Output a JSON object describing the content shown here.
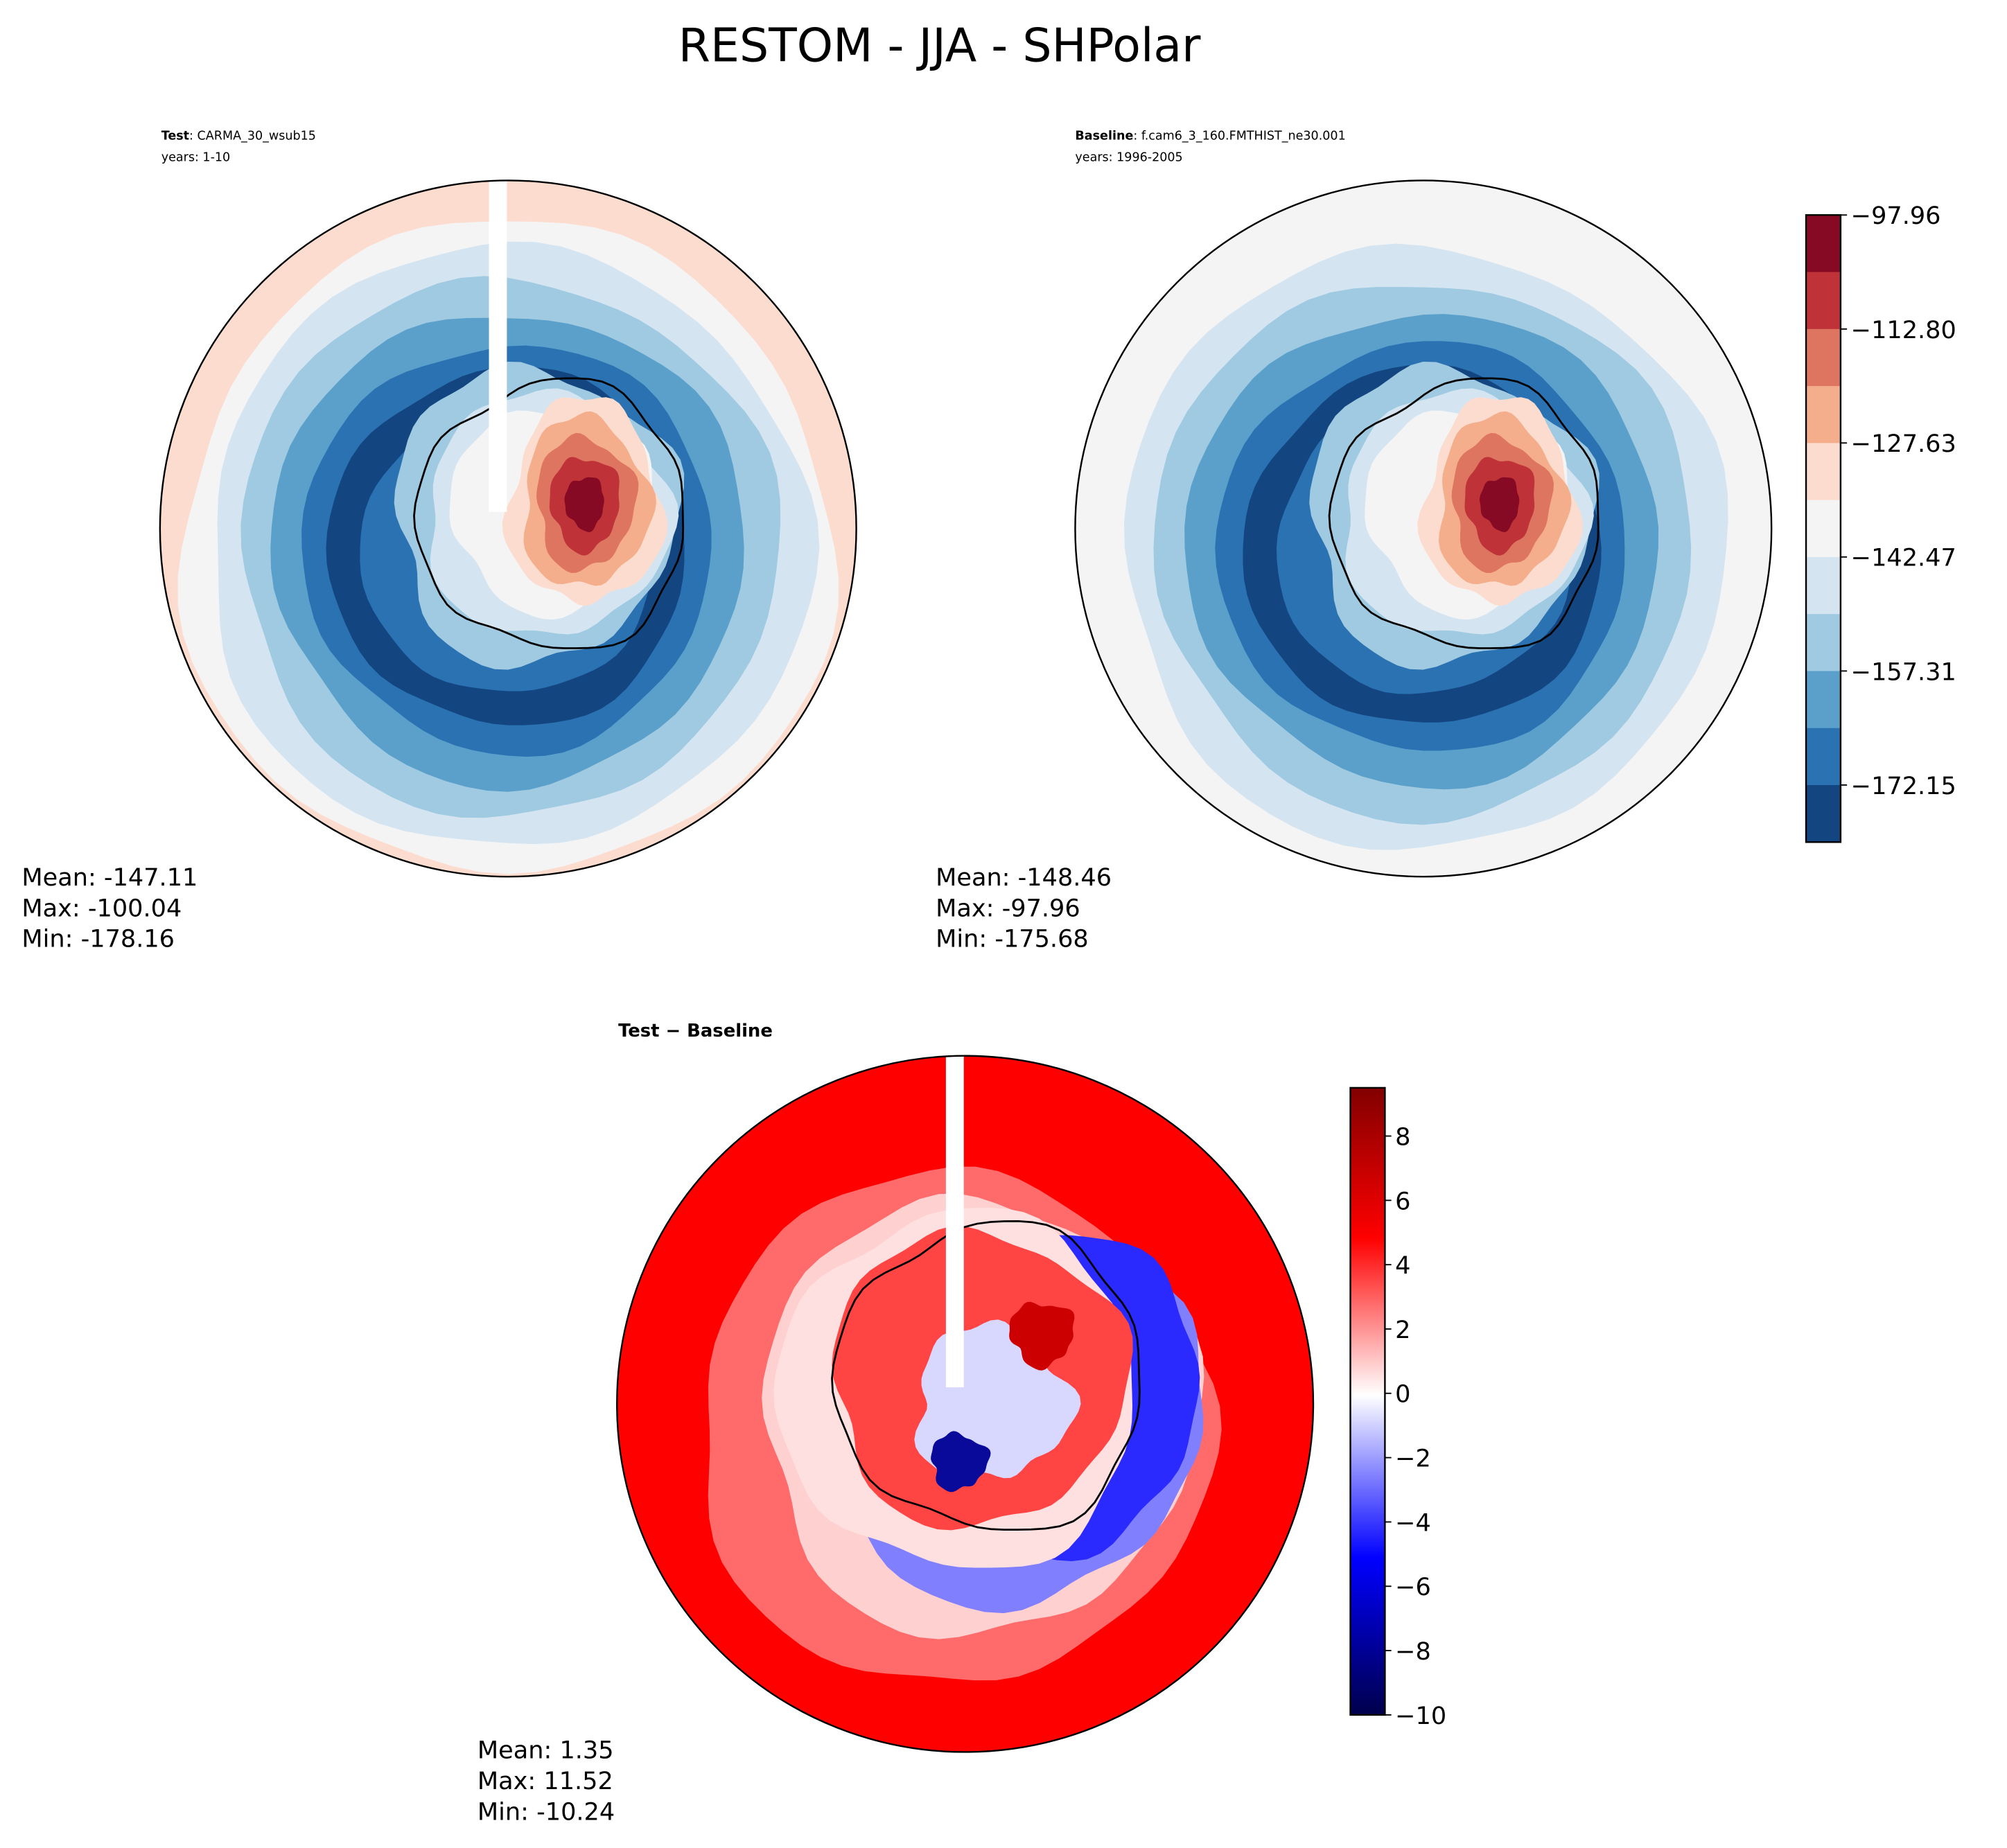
{
  "figure_title": "RESTOM - JJA - SHPolar",
  "chart_data": [
    {
      "type": "heatmap",
      "projection": "south-polar-stereographic",
      "title_bold": "Test",
      "title_rest": ": CARMA_30_wsub15",
      "subtitle": "years: 1-10",
      "stats": {
        "mean": "Mean: -147.11",
        "max": "Max: -100.04",
        "min": "Min: -178.16"
      },
      "field_range": [
        -178.16,
        -100.04
      ]
    },
    {
      "type": "heatmap",
      "projection": "south-polar-stereographic",
      "title_bold": "Baseline",
      "title_rest": ": f.cam6_3_160.FMTHIST_ne30.001",
      "subtitle": "years: 1996-2005",
      "stats": {
        "mean": "Mean: -148.46",
        "max": "Max: -97.96",
        "min": "Min: -175.68"
      },
      "field_range": [
        -175.68,
        -97.96
      ]
    },
    {
      "type": "heatmap",
      "projection": "south-polar-stereographic",
      "title_bold": "Test − Baseline",
      "stats": {
        "mean": "Mean:  1.35",
        "max": "Max: 11.52",
        "min": "Min: -10.24"
      },
      "field_range": [
        -10.24,
        11.52
      ]
    }
  ],
  "colorbar_main": {
    "colormap": "RdBu_r",
    "range": [
      -179.58,
      -97.96
    ],
    "ticks": [
      "−97.96",
      "−112.80",
      "−127.63",
      "−142.47",
      "−157.31",
      "−172.15"
    ],
    "tick_values": [
      -97.96,
      -112.8,
      -127.63,
      -142.47,
      -157.31,
      -172.15
    ],
    "band_colors": [
      "#860a24",
      "#bf3338",
      "#dd7560",
      "#f4ae8b",
      "#fcdccf",
      "#f4f4f4",
      "#d4e5f1",
      "#9fcae1",
      "#5aa0ca",
      "#2a72b2",
      "#134580"
    ]
  },
  "colorbar_diff": {
    "colormap": "seismic",
    "range": [
      -10,
      9.5
    ],
    "ticks": [
      "8",
      "6",
      "4",
      "2",
      "0",
      "−2",
      "−4",
      "−6",
      "−8",
      "−10"
    ],
    "tick_values": [
      8,
      6,
      4,
      2,
      0,
      -2,
      -4,
      -6,
      -8,
      -10
    ]
  }
}
